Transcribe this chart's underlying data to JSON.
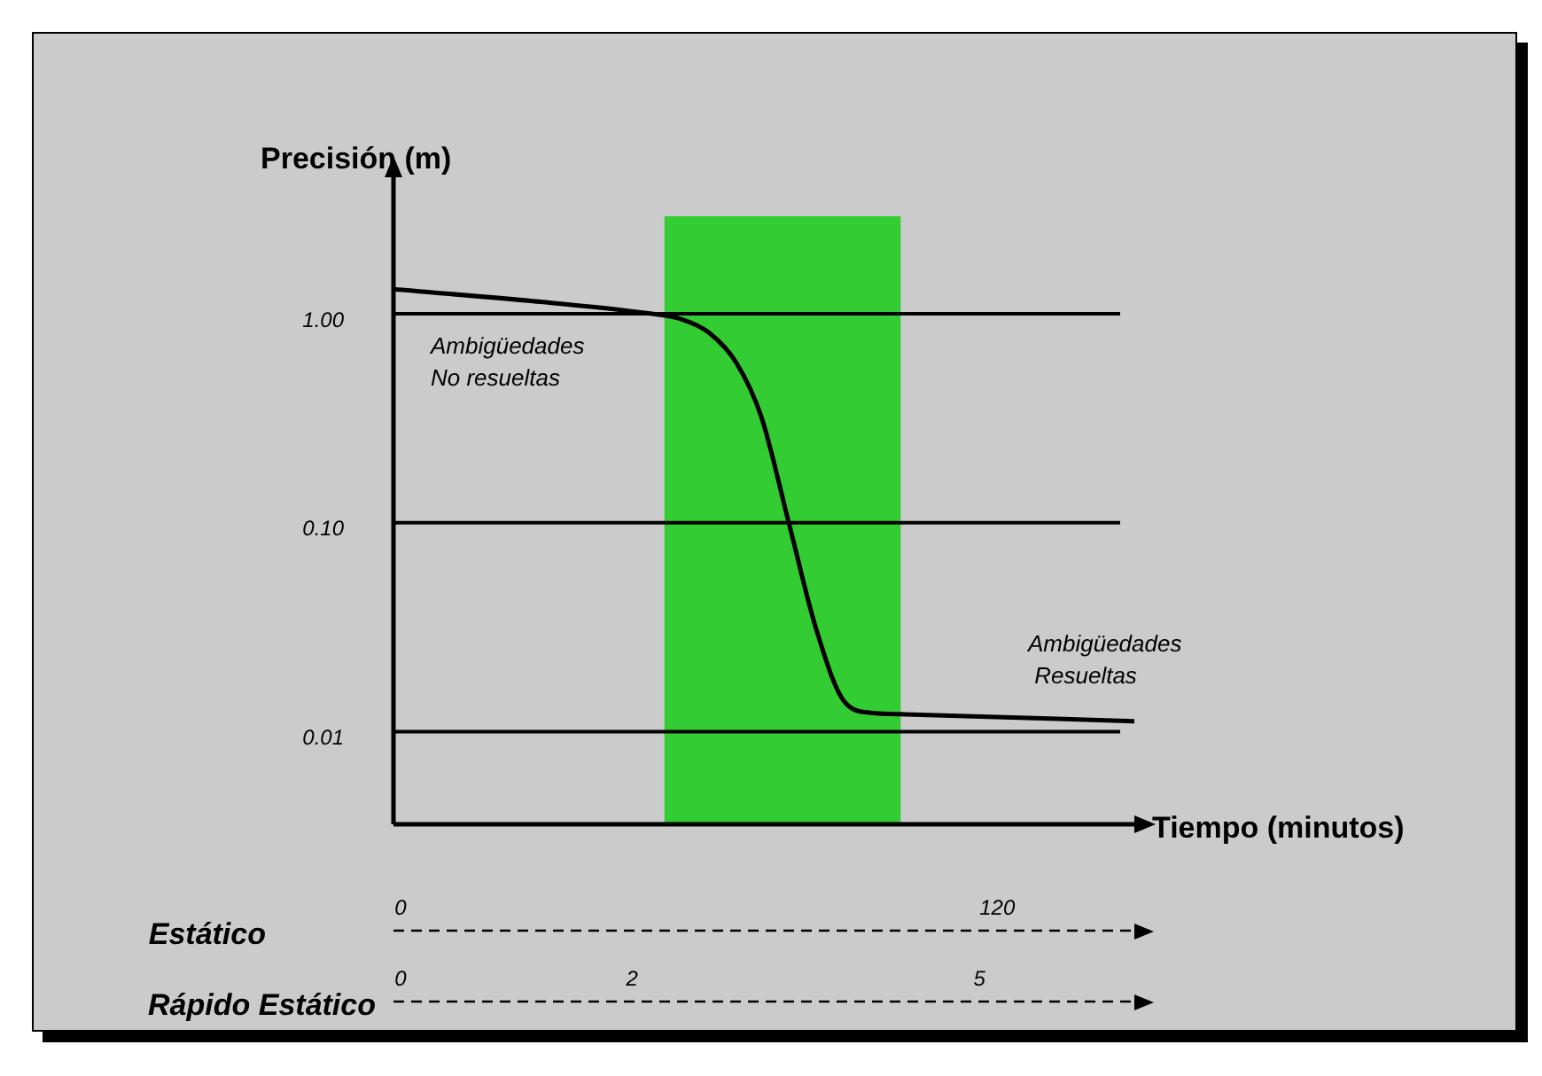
{
  "chart_data": {
    "type": "line",
    "ylabel": "Precisión (m)",
    "xlabel": "Tiempo (minutos)",
    "x2label": "Rápido Estático",
    "log": "y",
    "grid": "y",
    "marker": "none",
    "xlim": [
      0,
      149
    ],
    "xticks": [
      0,
      120
    ],
    "x2lim": [
      0,
      6.4
    ],
    "x2ticks": [
      0,
      2,
      5
    ],
    "ylim": [
      0.0036,
      4.5
    ],
    "yticks": [
      {
        "value": 1,
        "label": "1.00"
      },
      {
        "value": 0.1,
        "label": "0.10"
      },
      {
        "value": 0.01,
        "label": "0.01"
      }
    ],
    "series": [
      {
        "color": "#000000",
        "x": [
          0,
          28,
          49,
          58,
          63.5,
          69,
          74,
          79.5,
          85,
          90.5,
          96,
          103,
          149
        ],
        "values": [
          1.31,
          1.15,
          1.02,
          0.94,
          0.81,
          0.58,
          0.32,
          0.1,
          0.031,
          0.0141,
          0.0123,
          0.0121,
          0.0112
        ]
      }
    ],
    "bands": [
      {
        "axis": "x",
        "from": 54.5,
        "to": 102,
        "color": "#33cc33"
      }
    ],
    "annotations": [
      "Ambigüedades\nNo resueltas",
      "Ambigüedades\n Resueltas",
      "Estático"
    ]
  }
}
